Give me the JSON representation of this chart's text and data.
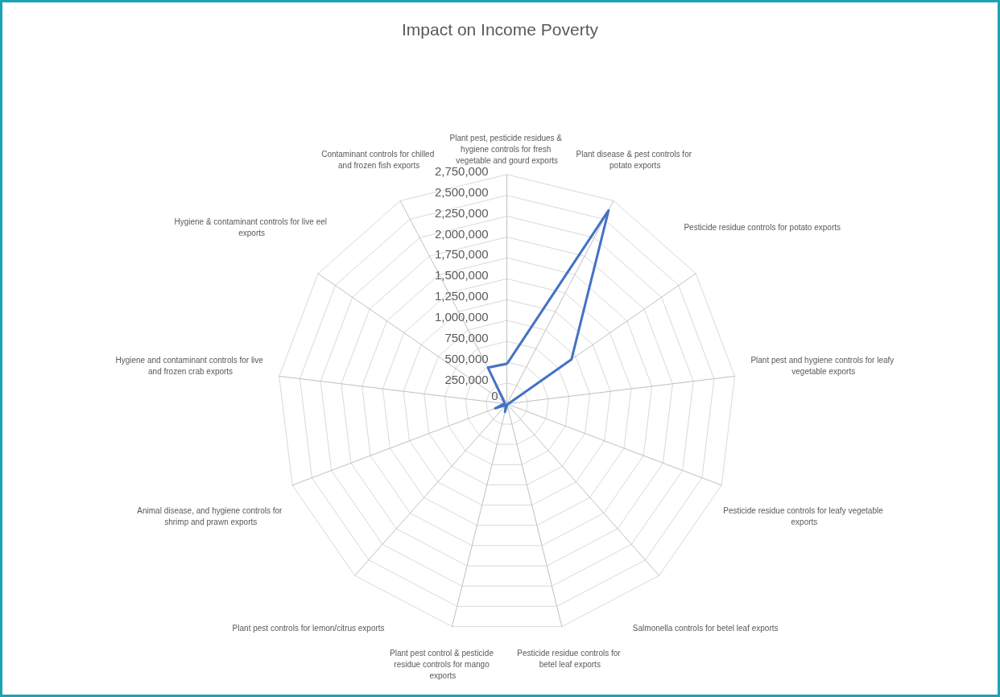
{
  "chart_data": {
    "type": "radar",
    "title": "Impact on Income Poverty",
    "categories": [
      "Plant pest, pesticide residues & hygiene controls for fresh vegetable and gourd exports",
      "Plant disease & pest controls for potato exports",
      "Pesticide residue controls for potato exports",
      "Plant pest and hygiene controls for leafy vegetable exports",
      "Pesticide residue controls for leafy vegetable exports",
      "Salmonella controls for betel leaf exports",
      "Pesticide residue controls for betel leaf exports",
      "Plant pest control & pesticide residue controls for mango exports",
      "Plant pest controls for lemon/citrus exports",
      "Animal disease, and hygiene controls for shrimp and prawn exports",
      "Hygiene and contaminant controls for live and frozen crab exports",
      "Hygiene & contaminant controls for live eel exports",
      "Contaminant controls for chilled and frozen fish exports"
    ],
    "series": [
      {
        "color": "#4472c4",
        "values": [
          480000,
          2620000,
          940000,
          20000,
          10000,
          10000,
          10000,
          100000,
          20000,
          150000,
          30000,
          40000,
          490000
        ]
      }
    ],
    "ylim": [
      0,
      2750000
    ],
    "yticks": [
      0,
      {
        "value": 250000,
        "label": "250,000"
      },
      {
        "value": 500000,
        "label": "500,000"
      },
      {
        "value": 750000,
        "label": "750,000"
      },
      {
        "value": 1000000,
        "label": "1,000,000"
      },
      {
        "value": 1250000,
        "label": "1,250,000"
      },
      {
        "value": 1500000,
        "label": "1,500,000"
      },
      {
        "value": 1750000,
        "label": "1,750,000"
      },
      {
        "value": 2000000,
        "label": "2,000,000"
      },
      {
        "value": 2250000,
        "label": "2,250,000"
      },
      {
        "value": 2500000,
        "label": "2,500,000"
      },
      {
        "value": 2750000,
        "label": "2,750,000"
      }
    ],
    "grid": true,
    "marker": "none",
    "line_style": "solid"
  }
}
